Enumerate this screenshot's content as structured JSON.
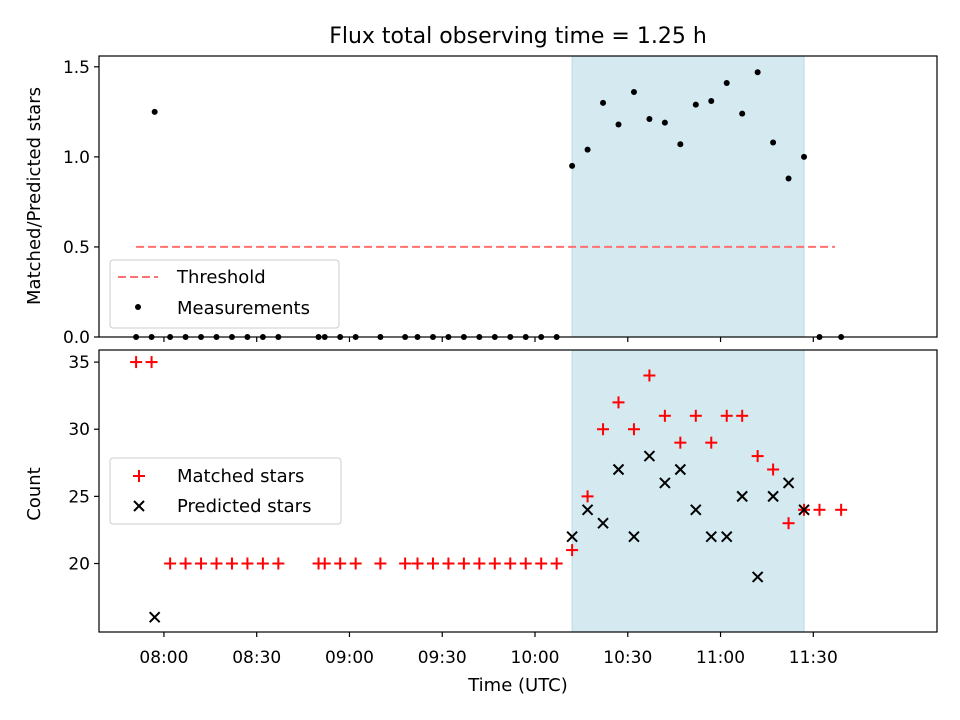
{
  "figure": {
    "title": "Flux total observing time = 1.25 h",
    "xlabel": "Time (UTC)",
    "x_tick_labels": [
      "08:00",
      "08:30",
      "09:00",
      "09:30",
      "10:00",
      "10:30",
      "11:00",
      "11:30"
    ],
    "highlight_color": "#d4e9f0"
  },
  "chart_data": [
    {
      "type": "scatter",
      "ylabel": "Matched/Predicted stars",
      "xlim": [
        "07:39",
        "12:10"
      ],
      "ylim": [
        0,
        1.56
      ],
      "y_ticks": [
        0.0,
        0.5,
        1.0,
        1.5
      ],
      "y_tick_labels": [
        "0.0",
        "0.5",
        "1.0",
        "1.5"
      ],
      "highlight_span": [
        "10:12",
        "11:27"
      ],
      "threshold": {
        "name": "Threshold",
        "value": 0.5,
        "x_range": [
          "07:51",
          "11:37"
        ],
        "color": "#ff7070"
      },
      "legend_position": "lower-left",
      "series": [
        {
          "name": "Measurements",
          "marker": "dot",
          "color": "#000000",
          "points": [
            [
              "07:51",
              0.0
            ],
            [
              "07:56",
              0.0
            ],
            [
              "07:57",
              1.25
            ],
            [
              "08:02",
              0.0
            ],
            [
              "08:07",
              0.0
            ],
            [
              "08:12",
              0.0
            ],
            [
              "08:17",
              0.0
            ],
            [
              "08:22",
              0.0
            ],
            [
              "08:27",
              0.0
            ],
            [
              "08:32",
              0.0
            ],
            [
              "08:37",
              0.0
            ],
            [
              "08:50",
              0.0
            ],
            [
              "08:52",
              0.0
            ],
            [
              "08:57",
              0.0
            ],
            [
              "09:02",
              0.0
            ],
            [
              "09:10",
              0.0
            ],
            [
              "09:18",
              0.0
            ],
            [
              "09:22",
              0.0
            ],
            [
              "09:27",
              0.0
            ],
            [
              "09:32",
              0.0
            ],
            [
              "09:37",
              0.0
            ],
            [
              "09:42",
              0.0
            ],
            [
              "09:47",
              0.0
            ],
            [
              "09:52",
              0.0
            ],
            [
              "09:57",
              0.0
            ],
            [
              "10:02",
              0.0
            ],
            [
              "10:07",
              0.0
            ],
            [
              "10:12",
              0.95
            ],
            [
              "10:17",
              1.04
            ],
            [
              "10:22",
              1.3
            ],
            [
              "10:27",
              1.18
            ],
            [
              "10:32",
              1.36
            ],
            [
              "10:37",
              1.21
            ],
            [
              "10:42",
              1.19
            ],
            [
              "10:47",
              1.07
            ],
            [
              "10:52",
              1.29
            ],
            [
              "10:57",
              1.31
            ],
            [
              "11:02",
              1.41
            ],
            [
              "11:07",
              1.24
            ],
            [
              "11:12",
              1.47
            ],
            [
              "11:17",
              1.08
            ],
            [
              "11:22",
              0.88
            ],
            [
              "11:27",
              1.0
            ],
            [
              "11:32",
              0.0
            ],
            [
              "11:39",
              0.0
            ]
          ]
        }
      ]
    },
    {
      "type": "scatter",
      "ylabel": "Count",
      "xlim": [
        "07:39",
        "12:10"
      ],
      "ylim": [
        14.9,
        35.9
      ],
      "y_ticks": [
        20,
        25,
        30,
        35
      ],
      "y_tick_labels": [
        "20",
        "25",
        "30",
        "35"
      ],
      "highlight_span": [
        "10:12",
        "11:27"
      ],
      "legend_position": "center-left",
      "series": [
        {
          "name": "Matched stars",
          "marker": "plus",
          "color": "#ff0000",
          "points": [
            [
              "07:51",
              35
            ],
            [
              "07:56",
              35
            ],
            [
              "08:02",
              20
            ],
            [
              "08:07",
              20
            ],
            [
              "08:12",
              20
            ],
            [
              "08:17",
              20
            ],
            [
              "08:22",
              20
            ],
            [
              "08:27",
              20
            ],
            [
              "08:32",
              20
            ],
            [
              "08:37",
              20
            ],
            [
              "08:50",
              20
            ],
            [
              "08:52",
              20
            ],
            [
              "08:57",
              20
            ],
            [
              "09:02",
              20
            ],
            [
              "09:10",
              20
            ],
            [
              "09:18",
              20
            ],
            [
              "09:22",
              20
            ],
            [
              "09:27",
              20
            ],
            [
              "09:32",
              20
            ],
            [
              "09:37",
              20
            ],
            [
              "09:42",
              20
            ],
            [
              "09:47",
              20
            ],
            [
              "09:52",
              20
            ],
            [
              "09:57",
              20
            ],
            [
              "10:02",
              20
            ],
            [
              "10:07",
              20
            ],
            [
              "10:12",
              21
            ],
            [
              "10:17",
              25
            ],
            [
              "10:22",
              30
            ],
            [
              "10:27",
              32
            ],
            [
              "10:32",
              30
            ],
            [
              "10:37",
              34
            ],
            [
              "10:42",
              31
            ],
            [
              "10:47",
              29
            ],
            [
              "10:52",
              31
            ],
            [
              "10:57",
              29
            ],
            [
              "11:02",
              31
            ],
            [
              "11:07",
              31
            ],
            [
              "11:12",
              28
            ],
            [
              "11:17",
              27
            ],
            [
              "11:22",
              23
            ],
            [
              "11:27",
              24
            ],
            [
              "11:32",
              24
            ],
            [
              "11:39",
              24
            ]
          ]
        },
        {
          "name": "Predicted stars",
          "marker": "x",
          "color": "#000000",
          "points": [
            [
              "07:57",
              16
            ],
            [
              "10:12",
              22
            ],
            [
              "10:17",
              24
            ],
            [
              "10:22",
              23
            ],
            [
              "10:27",
              27
            ],
            [
              "10:32",
              22
            ],
            [
              "10:37",
              28
            ],
            [
              "10:42",
              26
            ],
            [
              "10:47",
              27
            ],
            [
              "10:52",
              24
            ],
            [
              "10:57",
              22
            ],
            [
              "11:02",
              22
            ],
            [
              "11:07",
              25
            ],
            [
              "11:12",
              19
            ],
            [
              "11:17",
              25
            ],
            [
              "11:22",
              26
            ],
            [
              "11:27",
              24
            ]
          ]
        }
      ]
    }
  ]
}
